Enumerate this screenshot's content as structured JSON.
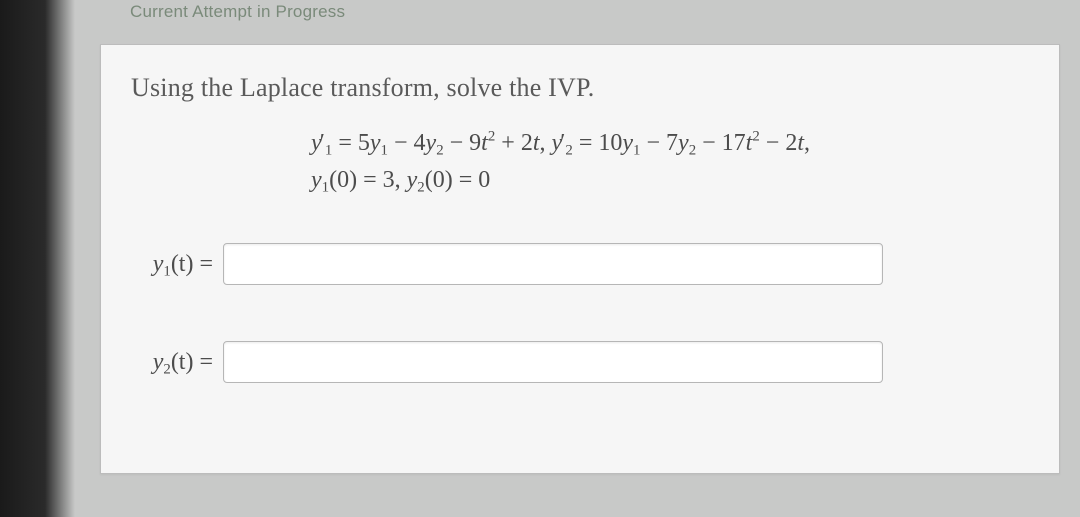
{
  "header": {
    "attempt_status": "Current Attempt in Progress"
  },
  "question": {
    "prompt": "Using the Laplace transform, solve the IVP.",
    "eq_line1": {
      "y1p": "y",
      "y1p_sub": "1",
      "prime": "′",
      "eq": " = 5",
      "y1": "y",
      "y1_sub": "1",
      "m1": " − 4",
      "y2": "y",
      "y2_sub": "2",
      "m2": " − 9",
      "t": "t",
      "t_sup": "2",
      "p2t": " + 2",
      "tt": "t",
      "comma": ",  ",
      "y2p": "y",
      "y2p_sub": "2",
      "prime2": "′",
      "eq2": " = 10",
      "yy1": "y",
      "yy1_sub": "1",
      "m3": " − 7",
      "yy2": "y",
      "yy2_sub": "2",
      "m4": " − 17",
      "ttt": "t",
      "ttt_sup": "2",
      "m5": " − 2",
      "tttt": "t",
      "comma2": ","
    },
    "eq_line2": {
      "a": "y",
      "a_sub": "1",
      "a_par": "(0) = 3,  ",
      "b": "y",
      "b_sub": "2",
      "b_par": "(0) = 0"
    }
  },
  "answers": {
    "y1": {
      "label_var": "y",
      "label_sub": "1",
      "label_arg": "(t) =",
      "value": ""
    },
    "y2": {
      "label_var": "y",
      "label_sub": "2",
      "label_arg": "(t) =",
      "value": ""
    }
  },
  "colors": {
    "page_bg": "#c8c9c8",
    "card_bg": "#f6f6f6",
    "card_border": "#bcbcbc",
    "text_muted": "#7a8a7a",
    "text_body": "#5a5a5a",
    "math": "#4c4c4c",
    "input_bg": "#ffffff",
    "input_border": "#b6b6b6"
  }
}
